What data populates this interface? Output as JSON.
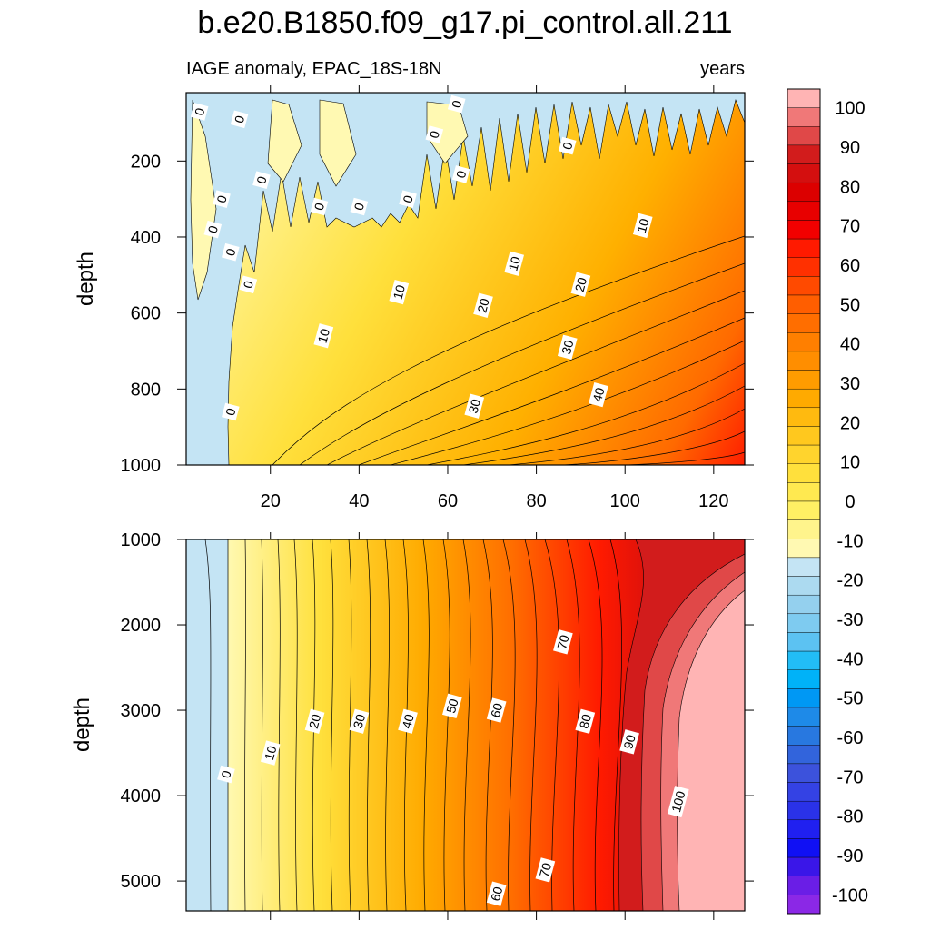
{
  "title": "b.e20.B1850.f09_g17.pi_control.all.211",
  "subtitle_left": "IAGE anomaly, EPAC_18S-18N",
  "subtitle_right": "years",
  "chart_data": [
    {
      "type": "heatmap",
      "panel": "upper",
      "xlabel": "",
      "ylabel": "depth",
      "xlim": [
        1,
        127
      ],
      "ylim": [
        1000,
        20
      ],
      "xticks": [
        20,
        40,
        60,
        80,
        100,
        120
      ],
      "yticks": [
        200,
        400,
        600,
        800,
        1000
      ],
      "contour_labels": [
        {
          "text": "0",
          "x": 4,
          "depth": 70
        },
        {
          "text": "0",
          "x": 13,
          "depth": 90
        },
        {
          "text": "0",
          "x": 62,
          "depth": 50
        },
        {
          "text": "0",
          "x": 57,
          "depth": 130
        },
        {
          "text": "0",
          "x": 87,
          "depth": 160
        },
        {
          "text": "0",
          "x": 18,
          "depth": 250
        },
        {
          "text": "0",
          "x": 9,
          "depth": 300
        },
        {
          "text": "0",
          "x": 63,
          "depth": 235
        },
        {
          "text": "0",
          "x": 31,
          "depth": 320
        },
        {
          "text": "0",
          "x": 40,
          "depth": 320
        },
        {
          "text": "0",
          "x": 51,
          "depth": 300
        },
        {
          "text": "0",
          "x": 7,
          "depth": 380
        },
        {
          "text": "0",
          "x": 11,
          "depth": 440
        },
        {
          "text": "0",
          "x": 15,
          "depth": 525
        },
        {
          "text": "0",
          "x": 11,
          "depth": 860
        },
        {
          "text": "10",
          "x": 104,
          "depth": 370
        },
        {
          "text": "10",
          "x": 75,
          "depth": 470
        },
        {
          "text": "10",
          "x": 49,
          "depth": 545
        },
        {
          "text": "10",
          "x": 32,
          "depth": 660
        },
        {
          "text": "20",
          "x": 90,
          "depth": 525
        },
        {
          "text": "20",
          "x": 68,
          "depth": 580
        },
        {
          "text": "30",
          "x": 87,
          "depth": 690
        },
        {
          "text": "30",
          "x": 66,
          "depth": 845
        },
        {
          "text": "40",
          "x": 94,
          "depth": 815
        }
      ]
    },
    {
      "type": "heatmap",
      "panel": "lower",
      "xlabel": "",
      "ylabel": "depth",
      "xlim": [
        1,
        127
      ],
      "ylim": [
        5350,
        1000
      ],
      "yticks": [
        1000,
        2000,
        3000,
        4000,
        5000
      ],
      "contour_labels": [
        {
          "text": "0",
          "x": 10,
          "depth": 3750
        },
        {
          "text": "10",
          "x": 20,
          "depth": 3500
        },
        {
          "text": "20",
          "x": 30,
          "depth": 3130
        },
        {
          "text": "30",
          "x": 40,
          "depth": 3130
        },
        {
          "text": "40",
          "x": 51,
          "depth": 3130
        },
        {
          "text": "50",
          "x": 61,
          "depth": 2950
        },
        {
          "text": "60",
          "x": 71,
          "depth": 3000
        },
        {
          "text": "70",
          "x": 86,
          "depth": 2200
        },
        {
          "text": "80",
          "x": 91,
          "depth": 3130
        },
        {
          "text": "90",
          "x": 101,
          "depth": 3370
        },
        {
          "text": "100",
          "x": 112,
          "depth": 4070
        },
        {
          "text": "70",
          "x": 82,
          "depth": 4870
        },
        {
          "text": "60",
          "x": 71,
          "depth": 5150
        }
      ]
    }
  ],
  "colorbar": {
    "labels": [
      "100",
      "90",
      "80",
      "70",
      "60",
      "50",
      "40",
      "30",
      "20",
      "10",
      "0",
      "-10",
      "-20",
      "-30",
      "-40",
      "-50",
      "-60",
      "-70",
      "-80",
      "-90",
      "-100"
    ],
    "colors": [
      "#ffb4b4",
      "#f07878",
      "#e04848",
      "#d21c1c",
      "#d40f0f",
      "#dc0000",
      "#e80000",
      "#f20000",
      "#ff1a00",
      "#ff3000",
      "#ff4a00",
      "#ff5e00",
      "#ff6e00",
      "#ff7f00",
      "#ff8e00",
      "#ff9c00",
      "#ffaa00",
      "#ffba0f",
      "#ffc81e",
      "#ffd42d",
      "#ffe03c",
      "#ffe950",
      "#fff064",
      "#fff48c",
      "#fff9b2",
      "#c4e4f4",
      "#acdaf0",
      "#94d0ee",
      "#7ecbf0",
      "#5cc2f2",
      "#22bdf6",
      "#00b2f8",
      "#0098f4",
      "#1e8ae8",
      "#2878e0",
      "#3264dc",
      "#3c52dc",
      "#3442e4",
      "#2a32e8",
      "#2020f0",
      "#1010f4",
      "#3a16e8",
      "#6a1ee6",
      "#8b28e6"
    ]
  }
}
